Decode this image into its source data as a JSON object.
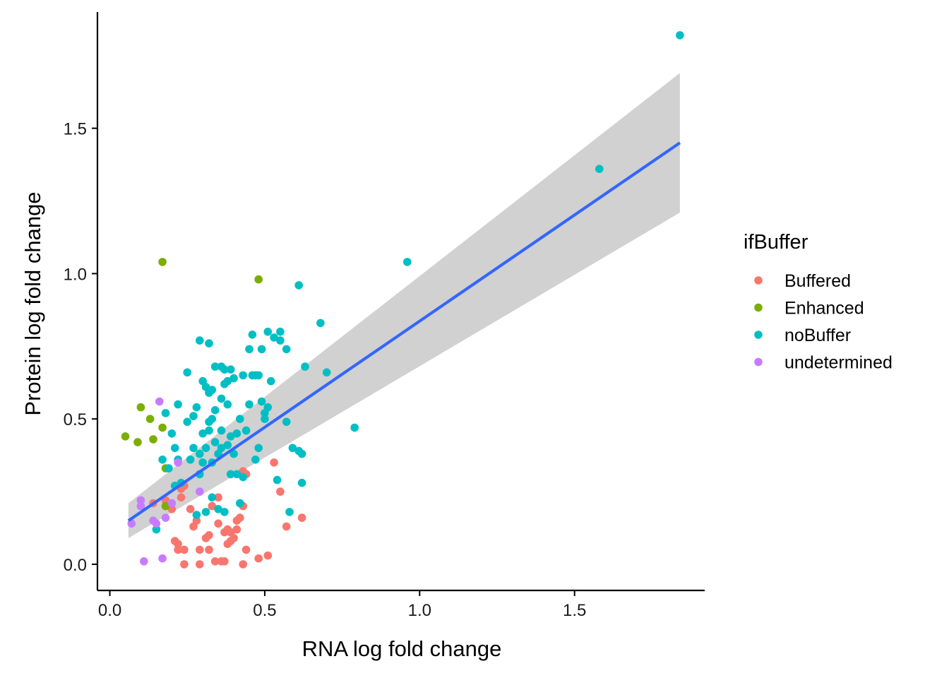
{
  "chart_data": {
    "type": "scatter",
    "title": "",
    "xlabel": "RNA log fold change",
    "ylabel": "Protein log fold change",
    "xlim": [
      -0.04,
      1.92
    ],
    "ylim": [
      -0.09,
      1.9
    ],
    "xticks": [
      0.0,
      0.5,
      1.0,
      1.5
    ],
    "xtick_labels": [
      "0.0",
      "0.5",
      "1.0",
      "1.5"
    ],
    "yticks": [
      0.0,
      0.5,
      1.0,
      1.5
    ],
    "ytick_labels": [
      "0.0",
      "0.5",
      "1.0",
      "1.5"
    ],
    "grid": false,
    "legend": {
      "title": "ifBuffer",
      "position": "right",
      "entries": [
        {
          "name": "Buffered",
          "color": "#F8766D"
        },
        {
          "name": "Enhanced",
          "color": "#7CAE00"
        },
        {
          "name": "noBuffer",
          "color": "#00BFC4"
        },
        {
          "name": "undetermined",
          "color": "#C77CFF"
        }
      ]
    },
    "fit": {
      "type": "linear",
      "color": "#3366FF",
      "ci_color": "#999999",
      "x": [
        0.06,
        1.84
      ],
      "y": [
        0.15,
        1.45
      ],
      "ci_lower": [
        0.09,
        1.21
      ],
      "ci_upper": [
        0.21,
        1.69
      ]
    },
    "series": [
      {
        "name": "Buffered",
        "color": "#F8766D",
        "points": [
          [
            0.14,
            0.21
          ],
          [
            0.18,
            0.22
          ],
          [
            0.2,
            0.19
          ],
          [
            0.21,
            0.08
          ],
          [
            0.22,
            0.07
          ],
          [
            0.22,
            0.05
          ],
          [
            0.23,
            0.26
          ],
          [
            0.23,
            0.23
          ],
          [
            0.24,
            0.05
          ],
          [
            0.24,
            0.27
          ],
          [
            0.24,
            0.0
          ],
          [
            0.26,
            0.19
          ],
          [
            0.27,
            0.13
          ],
          [
            0.28,
            0.15
          ],
          [
            0.29,
            0.0
          ],
          [
            0.29,
            0.05
          ],
          [
            0.31,
            0.09
          ],
          [
            0.32,
            0.1
          ],
          [
            0.32,
            0.05
          ],
          [
            0.33,
            0.2
          ],
          [
            0.34,
            0.01
          ],
          [
            0.35,
            0.14
          ],
          [
            0.35,
            0.23
          ],
          [
            0.36,
            0.01
          ],
          [
            0.37,
            0.11
          ],
          [
            0.37,
            0.01
          ],
          [
            0.38,
            0.12
          ],
          [
            0.38,
            0.07
          ],
          [
            0.39,
            0.08
          ],
          [
            0.39,
            0.11
          ],
          [
            0.4,
            0.09
          ],
          [
            0.41,
            0.15
          ],
          [
            0.41,
            0.12
          ],
          [
            0.42,
            0.16
          ],
          [
            0.43,
            0.0
          ],
          [
            0.43,
            0.2
          ],
          [
            0.44,
            0.05
          ],
          [
            0.44,
            0.31
          ],
          [
            0.48,
            0.02
          ],
          [
            0.51,
            0.03
          ],
          [
            0.53,
            0.35
          ],
          [
            0.55,
            0.25
          ],
          [
            0.57,
            0.13
          ],
          [
            0.62,
            0.16
          ],
          [
            0.43,
            0.32
          ]
        ]
      },
      {
        "name": "Enhanced",
        "color": "#7CAE00",
        "points": [
          [
            0.05,
            0.44
          ],
          [
            0.09,
            0.42
          ],
          [
            0.1,
            0.54
          ],
          [
            0.13,
            0.5
          ],
          [
            0.14,
            0.43
          ],
          [
            0.17,
            0.47
          ],
          [
            0.18,
            0.33
          ],
          [
            0.18,
            0.2
          ],
          [
            0.17,
            1.04
          ],
          [
            0.48,
            0.98
          ]
        ]
      },
      {
        "name": "noBuffer",
        "color": "#00BFC4",
        "points": [
          [
            0.15,
            0.12
          ],
          [
            0.17,
            0.36
          ],
          [
            0.18,
            0.52
          ],
          [
            0.19,
            0.33
          ],
          [
            0.2,
            0.45
          ],
          [
            0.21,
            0.27
          ],
          [
            0.21,
            0.4
          ],
          [
            0.22,
            0.55
          ],
          [
            0.22,
            0.36
          ],
          [
            0.23,
            0.28
          ],
          [
            0.25,
            0.66
          ],
          [
            0.25,
            0.49
          ],
          [
            0.26,
            0.36
          ],
          [
            0.27,
            0.51
          ],
          [
            0.27,
            0.4
          ],
          [
            0.28,
            0.17
          ],
          [
            0.28,
            0.54
          ],
          [
            0.29,
            0.31
          ],
          [
            0.29,
            0.77
          ],
          [
            0.29,
            0.38
          ],
          [
            0.3,
            0.63
          ],
          [
            0.3,
            0.45
          ],
          [
            0.3,
            0.35
          ],
          [
            0.31,
            0.4
          ],
          [
            0.31,
            0.61
          ],
          [
            0.31,
            0.18
          ],
          [
            0.32,
            0.49
          ],
          [
            0.32,
            0.59
          ],
          [
            0.32,
            0.76
          ],
          [
            0.32,
            0.46
          ],
          [
            0.33,
            0.6
          ],
          [
            0.33,
            0.5
          ],
          [
            0.33,
            0.23
          ],
          [
            0.33,
            0.35
          ],
          [
            0.34,
            0.68
          ],
          [
            0.34,
            0.53
          ],
          [
            0.34,
            0.42
          ],
          [
            0.35,
            0.38
          ],
          [
            0.35,
            0.19
          ],
          [
            0.36,
            0.68
          ],
          [
            0.36,
            0.46
          ],
          [
            0.36,
            0.57
          ],
          [
            0.36,
            0.4
          ],
          [
            0.37,
            0.62
          ],
          [
            0.37,
            0.67
          ],
          [
            0.37,
            0.18
          ],
          [
            0.38,
            0.63
          ],
          [
            0.38,
            0.55
          ],
          [
            0.38,
            0.41
          ],
          [
            0.39,
            0.67
          ],
          [
            0.39,
            0.44
          ],
          [
            0.39,
            0.31
          ],
          [
            0.4,
            0.64
          ],
          [
            0.4,
            0.38
          ],
          [
            0.41,
            0.45
          ],
          [
            0.41,
            0.31
          ],
          [
            0.42,
            0.21
          ],
          [
            0.42,
            0.5
          ],
          [
            0.43,
            0.3
          ],
          [
            0.43,
            0.65
          ],
          [
            0.44,
            0.46
          ],
          [
            0.45,
            0.55
          ],
          [
            0.45,
            0.74
          ],
          [
            0.46,
            0.79
          ],
          [
            0.46,
            0.65
          ],
          [
            0.47,
            0.65
          ],
          [
            0.47,
            0.36
          ],
          [
            0.48,
            0.4
          ],
          [
            0.48,
            0.65
          ],
          [
            0.49,
            0.74
          ],
          [
            0.49,
            0.56
          ],
          [
            0.5,
            0.5
          ],
          [
            0.5,
            0.52
          ],
          [
            0.51,
            0.54
          ],
          [
            0.51,
            0.8
          ],
          [
            0.52,
            0.63
          ],
          [
            0.53,
            0.78
          ],
          [
            0.54,
            0.29
          ],
          [
            0.55,
            0.8
          ],
          [
            0.55,
            0.77
          ],
          [
            0.57,
            0.74
          ],
          [
            0.57,
            0.49
          ],
          [
            0.58,
            0.18
          ],
          [
            0.59,
            0.4
          ],
          [
            0.61,
            0.96
          ],
          [
            0.61,
            0.39
          ],
          [
            0.62,
            0.38
          ],
          [
            0.62,
            0.28
          ],
          [
            0.63,
            0.68
          ],
          [
            0.68,
            0.83
          ],
          [
            0.7,
            0.66
          ],
          [
            0.79,
            0.47
          ],
          [
            0.96,
            1.04
          ],
          [
            1.58,
            1.36
          ],
          [
            1.84,
            1.82
          ]
        ]
      },
      {
        "name": "undetermined",
        "color": "#C77CFF",
        "points": [
          [
            0.07,
            0.14
          ],
          [
            0.1,
            0.22
          ],
          [
            0.1,
            0.2
          ],
          [
            0.11,
            0.01
          ],
          [
            0.14,
            0.15
          ],
          [
            0.15,
            0.14
          ],
          [
            0.16,
            0.56
          ],
          [
            0.17,
            0.02
          ],
          [
            0.18,
            0.16
          ],
          [
            0.2,
            0.21
          ],
          [
            0.22,
            0.35
          ],
          [
            0.29,
            0.25
          ]
        ]
      }
    ]
  }
}
